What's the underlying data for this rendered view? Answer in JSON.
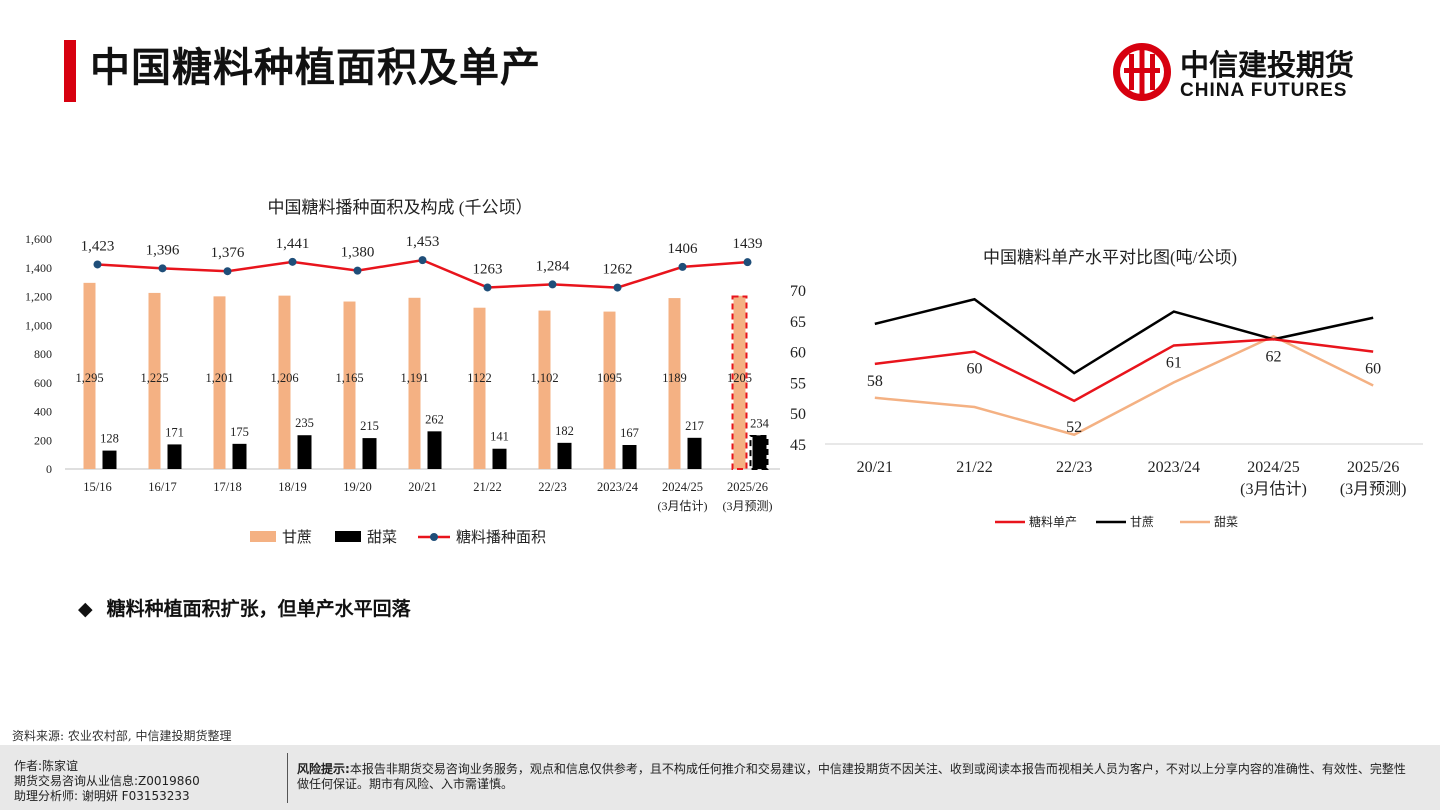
{
  "page": {
    "title": "中国糖料种植面积及单产",
    "logo_cn": "中信建投期货",
    "logo_en": "CHINA FUTURES",
    "bullet": "糖料种植面积扩张，但单产水平回落",
    "source": "资料来源: 农业农村部, 中信建投期货整理",
    "footer": {
      "author": "作者:陈家谊",
      "qualification": "期货交易咨询从业信息:Z0019860",
      "assistant": "助理分析师:  谢明妍 F03153233",
      "risk_label": "风险提示:",
      "risk_text": "本报告非期货交易咨询业务服务，观点和信息仅供参考，且不构成任何推介和交易建议，中信建投期货不因关注、收到或阅读本报告而视相关人员为客户，不对以上分享内容的准确性、有效性、完整性做任何保证。期市有风险、入市需谨慎。"
    },
    "colors": {
      "brand_red": "#d7000f"
    }
  },
  "chart_data": [
    {
      "type": "bar",
      "title": "中国糖料播种面积及构成 (千公顷）",
      "categories": [
        "15/16",
        "16/17",
        "17/18",
        "18/19",
        "19/20",
        "20/21",
        "21/22",
        "22/23",
        "2023/24",
        "2024/25",
        "2025/26"
      ],
      "category_sublabels": [
        "",
        "",
        "",
        "",
        "",
        "",
        "",
        "",
        "",
        "(3月估计)",
        "(3月预测)"
      ],
      "ylim": [
        0,
        1600
      ],
      "yticks": [
        "0",
        "200",
        "400",
        "600",
        "800",
        "1,000",
        "1,200",
        "1,400",
        "1,600"
      ],
      "series": [
        {
          "name": "甘蔗",
          "kind": "bar",
          "color": "#f4b183",
          "values": [
            1295,
            1225,
            1201,
            1206,
            1165,
            1191,
            1122,
            1102,
            1095,
            1189,
            1205
          ],
          "labels": [
            "1,295",
            "1,225",
            "1,201",
            "1,206",
            "1,165",
            "1,191",
            "1122",
            "1,102",
            "1095",
            "1189",
            "1205"
          ]
        },
        {
          "name": "甜菜",
          "kind": "bar",
          "color": "#000000",
          "values": [
            128,
            171,
            175,
            235,
            215,
            262,
            141,
            182,
            167,
            217,
            234
          ],
          "labels": [
            "128",
            "171",
            "175",
            "235",
            "215",
            "262",
            "141",
            "182",
            "167",
            "217",
            "234"
          ]
        },
        {
          "name": "糖料播种面积",
          "kind": "line",
          "color": "#e8141c",
          "values": [
            1423,
            1396,
            1376,
            1441,
            1380,
            1453,
            1263,
            1284,
            1262,
            1406,
            1439
          ],
          "labels": [
            "1,423",
            "1,396",
            "1,376",
            "1,441",
            "1,380",
            "1,453",
            "1263",
            "1,284",
            "1262",
            "1406",
            "1439"
          ]
        }
      ],
      "legend": [
        "甘蔗",
        "甜菜",
        "糖料播种面积"
      ],
      "legend_position": "bottom",
      "forecast_highlight": "2025/26"
    },
    {
      "type": "line",
      "title": "中国糖料单产水平对比图(吨/公顷)",
      "categories": [
        "20/21",
        "21/22",
        "22/23",
        "2023/24",
        "2024/25",
        "2025/26"
      ],
      "category_sublabels": [
        "",
        "",
        "",
        "",
        "(3月估计)",
        "(3月预测)"
      ],
      "ylim": [
        45,
        70
      ],
      "yticks": [
        "45",
        "50",
        "55",
        "60",
        "65",
        "70"
      ],
      "series": [
        {
          "name": "糖料单产",
          "color": "#e8141c",
          "values": [
            58,
            60,
            52,
            61,
            62,
            60
          ],
          "labels": [
            "58",
            "60",
            "52",
            "61",
            "62",
            "60"
          ]
        },
        {
          "name": "甘蔗",
          "color": "#000000",
          "values": [
            64.5,
            68.5,
            56.5,
            66.5,
            62,
            65.5
          ]
        },
        {
          "name": "甜菜",
          "color": "#f4b183",
          "values": [
            52.5,
            51,
            46.5,
            55,
            62.5,
            54.5
          ]
        }
      ],
      "legend": [
        "糖料单产",
        "甘蔗",
        "甜菜"
      ],
      "legend_position": "bottom"
    }
  ]
}
